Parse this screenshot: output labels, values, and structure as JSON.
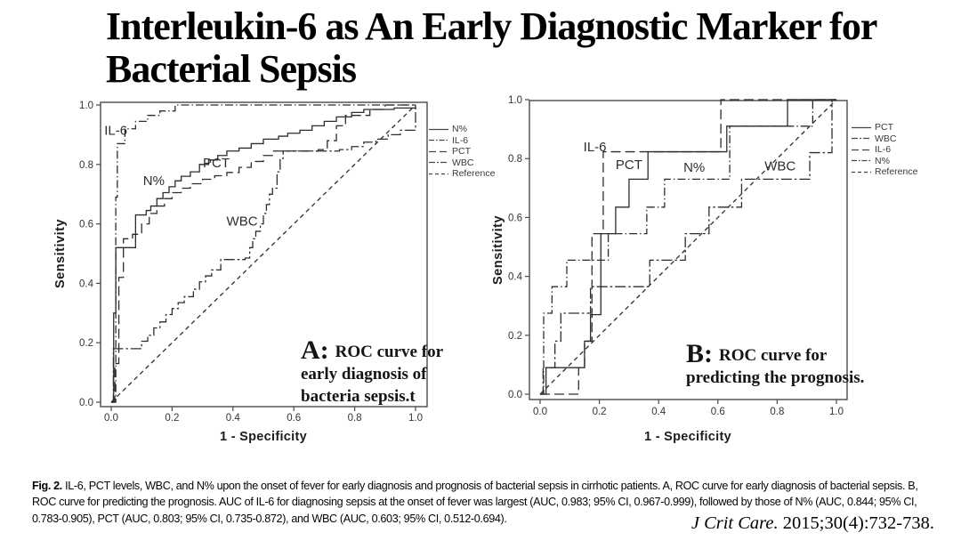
{
  "page_title": {
    "line1": "Interleukin-6 as An Early Diagnostic Marker for",
    "line2": "Bacterial Sepsis"
  },
  "caption": {
    "label": "Fig. 2.",
    "text": "IL-6, PCT levels, WBC, and N% upon the onset of fever for early diagnosis and prognosis of bacterial sepsis in cirrhotic patients. A, ROC curve for early diagnosis of bacterial sepsis. B, ROC curve for predicting the prognosis. AUC of IL-6 for diagnosing sepsis at the onset of fever was largest (AUC, 0.983; 95% CI, 0.967-0.999), followed by those of N% (AUC, 0.844; 95% CI, 0.783-0.905), PCT (AUC, 0.803; 95% CI, 0.735-0.872), and WBC (AUC, 0.603; 95% CI, 0.512-0.694)."
  },
  "citation": {
    "journal": "J Crit Care.",
    "rest": " 2015;30(4):732-738."
  },
  "colors": {
    "curve": "#2d2d2d",
    "frame": "#4a4a4a",
    "tick_text": "#333333"
  },
  "chart_data": [
    {
      "id": "A",
      "type": "line",
      "xlabel": "1 - Specificity",
      "ylabel": "Sensitivity",
      "xlim": [
        0,
        1
      ],
      "ylim": [
        0,
        1
      ],
      "xticks": [
        0,
        0.2,
        0.4,
        0.6,
        0.8,
        1.0
      ],
      "yticks": [
        0,
        0.2,
        0.4,
        0.6,
        0.8,
        1.0
      ],
      "grid": false,
      "legend_position": "right",
      "legend": [
        "N%",
        "IL-6",
        "PCT",
        "WBC",
        "Reference"
      ],
      "annotation": {
        "prefix": "A:",
        "lines": [
          "ROC curve for",
          "early diagnosis of",
          "bacteria sepsis.t"
        ]
      },
      "curve_labels": [
        {
          "text": "IL-6",
          "x": 0.015,
          "y": 0.9
        },
        {
          "text": "N%",
          "x": 0.14,
          "y": 0.73
        },
        {
          "text": "PCT",
          "x": 0.345,
          "y": 0.79
        },
        {
          "text": "WBC",
          "x": 0.43,
          "y": 0.595
        }
      ],
      "series": [
        {
          "name": "N%",
          "style": "solid",
          "step": true,
          "points": [
            [
              0,
              0
            ],
            [
              0.008,
              0.3
            ],
            [
              0.015,
              0.52
            ],
            [
              0.08,
              0.63
            ],
            [
              0.115,
              0.645
            ],
            [
              0.13,
              0.66
            ],
            [
              0.15,
              0.685
            ],
            [
              0.17,
              0.705
            ],
            [
              0.19,
              0.725
            ],
            [
              0.21,
              0.745
            ],
            [
              0.23,
              0.76
            ],
            [
              0.26,
              0.775
            ],
            [
              0.29,
              0.8
            ],
            [
              0.32,
              0.815
            ],
            [
              0.35,
              0.83
            ],
            [
              0.38,
              0.845
            ],
            [
              0.42,
              0.855
            ],
            [
              0.46,
              0.87
            ],
            [
              0.5,
              0.885
            ],
            [
              0.55,
              0.895
            ],
            [
              0.58,
              0.905
            ],
            [
              0.62,
              0.915
            ],
            [
              0.66,
              0.93
            ],
            [
              0.7,
              0.945
            ],
            [
              0.74,
              0.96
            ],
            [
              0.79,
              0.975
            ],
            [
              0.83,
              0.985
            ],
            [
              0.93,
              0.99
            ],
            [
              1,
              1
            ]
          ]
        },
        {
          "name": "IL-6",
          "style": "dashdot",
          "step": true,
          "points": [
            [
              0,
              0
            ],
            [
              0.015,
              0.69
            ],
            [
              0.02,
              0.87
            ],
            [
              0.045,
              0.92
            ],
            [
              0.08,
              0.945
            ],
            [
              0.12,
              0.965
            ],
            [
              0.16,
              0.98
            ],
            [
              0.21,
              1.0
            ],
            [
              1,
              1
            ]
          ]
        },
        {
          "name": "PCT",
          "style": "longdash",
          "step": true,
          "points": [
            [
              0,
              0
            ],
            [
              0.012,
              0.13
            ],
            [
              0.025,
              0.42
            ],
            [
              0.04,
              0.55
            ],
            [
              0.07,
              0.565
            ],
            [
              0.1,
              0.6
            ],
            [
              0.125,
              0.635
            ],
            [
              0.15,
              0.66
            ],
            [
              0.175,
              0.685
            ],
            [
              0.2,
              0.705
            ],
            [
              0.23,
              0.72
            ],
            [
              0.26,
              0.735
            ],
            [
              0.3,
              0.75
            ],
            [
              0.34,
              0.762
            ],
            [
              0.38,
              0.773
            ],
            [
              0.42,
              0.79
            ],
            [
              0.46,
              0.81
            ],
            [
              0.5,
              0.83
            ],
            [
              0.53,
              0.845
            ],
            [
              0.68,
              0.85
            ],
            [
              0.71,
              0.88
            ],
            [
              0.74,
              0.93
            ],
            [
              0.77,
              0.965
            ],
            [
              0.85,
              0.985
            ],
            [
              0.9,
              1.0
            ],
            [
              1,
              1
            ]
          ]
        },
        {
          "name": "WBC",
          "style": "dashdot2",
          "step": true,
          "points": [
            [
              0,
              0
            ],
            [
              0.007,
              0.18
            ],
            [
              0.085,
              0.18
            ],
            [
              0.1,
              0.205
            ],
            [
              0.12,
              0.225
            ],
            [
              0.14,
              0.25
            ],
            [
              0.16,
              0.27
            ],
            [
              0.18,
              0.295
            ],
            [
              0.2,
              0.315
            ],
            [
              0.22,
              0.335
            ],
            [
              0.24,
              0.355
            ],
            [
              0.27,
              0.38
            ],
            [
              0.29,
              0.405
            ],
            [
              0.31,
              0.425
            ],
            [
              0.33,
              0.445
            ],
            [
              0.36,
              0.48
            ],
            [
              0.44,
              0.485
            ],
            [
              0.455,
              0.52
            ],
            [
              0.465,
              0.55
            ],
            [
              0.475,
              0.575
            ],
            [
              0.49,
              0.6
            ],
            [
              0.5,
              0.635
            ],
            [
              0.51,
              0.665
            ],
            [
              0.52,
              0.7
            ],
            [
              0.53,
              0.72
            ],
            [
              0.545,
              0.775
            ],
            [
              0.555,
              0.82
            ],
            [
              0.565,
              0.845
            ],
            [
              0.75,
              0.85
            ],
            [
              0.79,
              0.86
            ],
            [
              0.83,
              0.875
            ],
            [
              0.87,
              0.885
            ],
            [
              0.91,
              0.9
            ],
            [
              0.95,
              0.915
            ],
            [
              1,
              1
            ]
          ]
        },
        {
          "name": "Reference",
          "style": "shortdash",
          "step": false,
          "points": [
            [
              0,
              0
            ],
            [
              1,
              1
            ]
          ]
        }
      ]
    },
    {
      "id": "B",
      "type": "line",
      "xlabel": "1 - Specificity",
      "ylabel": "Sensitivity",
      "xlim": [
        0,
        1
      ],
      "ylim": [
        0,
        1
      ],
      "xticks": [
        0,
        0.2,
        0.4,
        0.6,
        0.8,
        1.0
      ],
      "yticks": [
        0,
        0.2,
        0.4,
        0.6,
        0.8,
        1.0
      ],
      "grid": false,
      "legend_position": "right",
      "legend": [
        "PCT",
        "WBC",
        "IL-6",
        "N%",
        "Reference"
      ],
      "annotation": {
        "prefix": "B:",
        "lines": [
          "ROC curve for",
          "predicting the prognosis."
        ]
      },
      "curve_labels": [
        {
          "text": "IL-6",
          "x": 0.185,
          "y": 0.825
        },
        {
          "text": "PCT",
          "x": 0.3,
          "y": 0.765
        },
        {
          "text": "N%",
          "x": 0.52,
          "y": 0.755
        },
        {
          "text": "WBC",
          "x": 0.81,
          "y": 0.76
        }
      ],
      "series": [
        {
          "name": "PCT",
          "style": "solid",
          "step": true,
          "points": [
            [
              0,
              0
            ],
            [
              0.02,
              0.09
            ],
            [
              0.15,
              0.18
            ],
            [
              0.17,
              0.27
            ],
            [
              0.205,
              0.545
            ],
            [
              0.255,
              0.635
            ],
            [
              0.3,
              0.73
            ],
            [
              0.364,
              0.823
            ],
            [
              0.63,
              0.91
            ],
            [
              0.835,
              1.0
            ],
            [
              1,
              1
            ]
          ]
        },
        {
          "name": "WBC",
          "style": "dashdot2",
          "step": true,
          "points": [
            [
              0,
              0
            ],
            [
              0.01,
              0.09
            ],
            [
              0.05,
              0.18
            ],
            [
              0.07,
              0.275
            ],
            [
              0.17,
              0.365
            ],
            [
              0.37,
              0.455
            ],
            [
              0.49,
              0.545
            ],
            [
              0.57,
              0.635
            ],
            [
              0.68,
              0.73
            ],
            [
              0.91,
              0.82
            ],
            [
              0.985,
              1.0
            ],
            [
              1,
              1
            ]
          ]
        },
        {
          "name": "IL-6",
          "style": "longdash",
          "step": true,
          "points": [
            [
              0,
              0
            ],
            [
              0.13,
              0.09
            ],
            [
              0.15,
              0.18
            ],
            [
              0.175,
              0.545
            ],
            [
              0.213,
              0.823
            ],
            [
              0.61,
              1.0
            ],
            [
              1,
              1
            ]
          ]
        },
        {
          "name": "N%",
          "style": "dashdot",
          "step": true,
          "points": [
            [
              0,
              0
            ],
            [
              0.012,
              0.275
            ],
            [
              0.04,
              0.365
            ],
            [
              0.09,
              0.455
            ],
            [
              0.23,
              0.545
            ],
            [
              0.36,
              0.635
            ],
            [
              0.42,
              0.73
            ],
            [
              0.64,
              0.91
            ],
            [
              0.92,
              1.0
            ],
            [
              1,
              1
            ]
          ]
        },
        {
          "name": "Reference",
          "style": "shortdash",
          "step": false,
          "points": [
            [
              0,
              0
            ],
            [
              1,
              1
            ]
          ]
        }
      ]
    }
  ]
}
